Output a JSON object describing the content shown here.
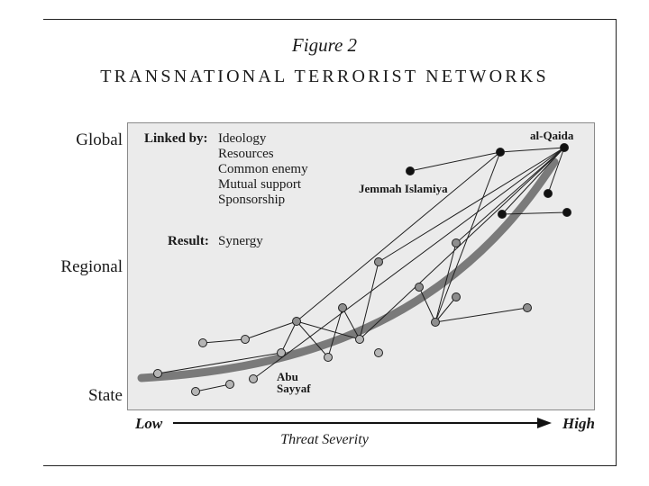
{
  "figure": {
    "label": "Figure 2",
    "title": "TRANSNATIONAL TERRORIST NETWORKS"
  },
  "y_axis": {
    "levels": [
      "Global",
      "Regional",
      "State"
    ]
  },
  "x_axis": {
    "low": "Low",
    "high": "High",
    "title": "Threat Severity"
  },
  "legend": {
    "linked_by_label": "Linked by:",
    "linked_by_items": [
      "Ideology",
      "Resources",
      "Common enemy",
      "Mutual support",
      "Sponsorship"
    ],
    "result_label": "Result:",
    "result_value": "Synergy"
  },
  "annotations": {
    "al_qaida": "al-Qaida",
    "jemmah_islamiya": "Jemmah Islamiya",
    "abu_sayyaf_line1": "Abu",
    "abu_sayyaf_line2": "Sayyaf"
  },
  "colors": {
    "plot_background": "#ebebeb",
    "trend_curve": "#7a7a7a",
    "node_dark": "#111111",
    "node_light": "#b5b5b5",
    "node_mid": "#8e8e8e"
  },
  "icons": {
    "axis_arrow": "arrow-right-icon"
  }
}
